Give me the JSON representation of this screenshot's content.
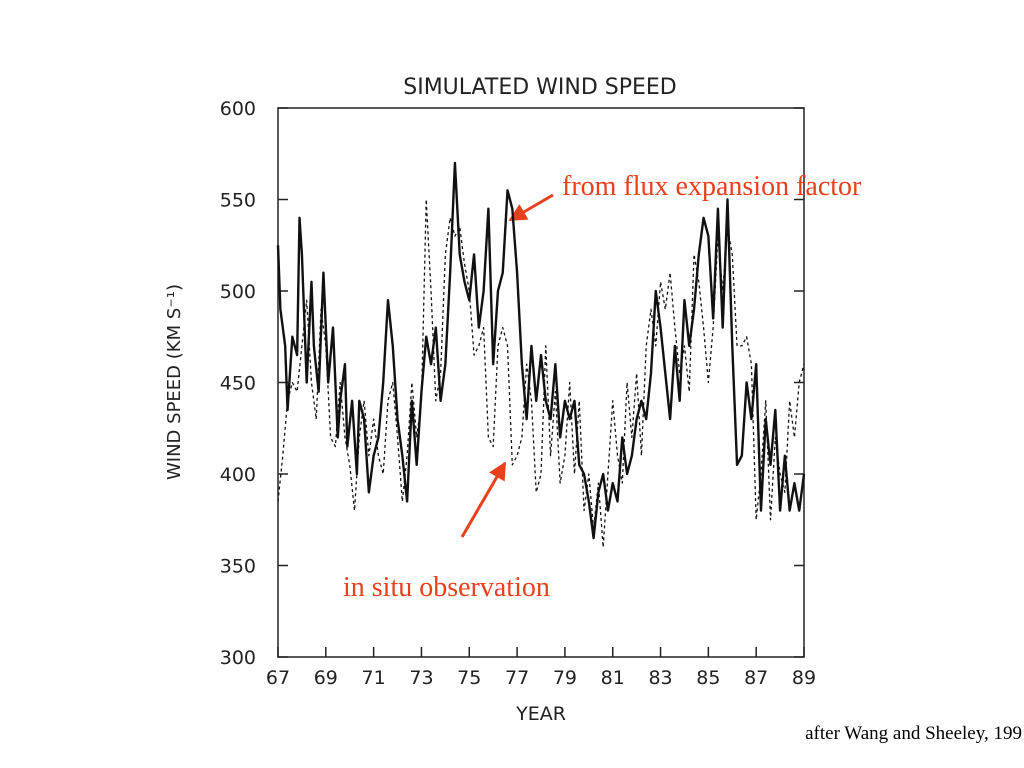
{
  "chart_data": {
    "type": "line",
    "title": "SIMULATED WIND SPEED",
    "xlabel": "YEAR",
    "ylabel": "WIND SPEED (KM S⁻¹)",
    "xlim": [
      67,
      89
    ],
    "xticks": [
      67,
      69,
      71,
      73,
      75,
      77,
      79,
      81,
      83,
      85,
      87,
      89
    ],
    "ylim": [
      300,
      600
    ],
    "yticks": [
      300,
      350,
      400,
      450,
      500,
      550,
      600
    ],
    "series": [
      {
        "color": "#111111",
        "style": "solid",
        "x": [
          67.0,
          67.1,
          67.3,
          67.4,
          67.6,
          67.8,
          67.9,
          68.0,
          68.2,
          68.4,
          68.5,
          68.7,
          68.9,
          69.1,
          69.3,
          69.5,
          69.6,
          69.8,
          69.9,
          70.1,
          70.3,
          70.4,
          70.6,
          70.8,
          71.0,
          71.2,
          71.4,
          71.6,
          71.8,
          72.0,
          72.2,
          72.4,
          72.6,
          72.8,
          73.0,
          73.2,
          73.4,
          73.6,
          73.8,
          74.0,
          74.2,
          74.4,
          74.6,
          74.8,
          75.0,
          75.2,
          75.4,
          75.6,
          75.8,
          76.0,
          76.2,
          76.4,
          76.6,
          76.8,
          77.0,
          77.2,
          77.4,
          77.6,
          77.8,
          78.0,
          78.2,
          78.4,
          78.6,
          78.8,
          79.0,
          79.2,
          79.4,
          79.6,
          79.8,
          80.0,
          80.2,
          80.4,
          80.6,
          80.8,
          81.0,
          81.2,
          81.4,
          81.6,
          81.8,
          82.0,
          82.2,
          82.4,
          82.6,
          82.8,
          83.0,
          83.2,
          83.4,
          83.6,
          83.8,
          84.0,
          84.2,
          84.4,
          84.6,
          84.8,
          85.0,
          85.2,
          85.4,
          85.6,
          85.8,
          86.0,
          86.2,
          86.4,
          86.6,
          86.8,
          87.0,
          87.2,
          87.4,
          87.6,
          87.8,
          88.0,
          88.2,
          88.4,
          88.6,
          88.8,
          89.0
        ],
        "values": [
          525,
          490,
          470,
          435,
          475,
          465,
          540,
          520,
          450,
          505,
          470,
          445,
          510,
          450,
          480,
          420,
          440,
          460,
          415,
          440,
          400,
          440,
          430,
          390,
          410,
          420,
          450,
          495,
          470,
          430,
          410,
          385,
          440,
          405,
          445,
          475,
          460,
          480,
          440,
          460,
          510,
          570,
          520,
          505,
          495,
          520,
          480,
          500,
          545,
          460,
          500,
          510,
          555,
          545,
          510,
          460,
          430,
          470,
          440,
          465,
          440,
          430,
          460,
          420,
          440,
          430,
          440,
          405,
          400,
          385,
          365,
          390,
          400,
          380,
          395,
          385,
          420,
          400,
          410,
          430,
          440,
          430,
          455,
          500,
          480,
          455,
          430,
          470,
          440,
          495,
          470,
          490,
          520,
          540,
          530,
          485,
          545,
          480,
          550,
          470,
          405,
          410,
          450,
          430,
          460,
          380,
          430,
          405,
          435,
          380,
          410,
          380,
          395,
          380,
          400
        ]
      },
      {
        "color": "#111111",
        "style": "dotted",
        "x": [
          67.0,
          67.2,
          67.4,
          67.6,
          67.8,
          68.0,
          68.2,
          68.4,
          68.6,
          68.8,
          69.0,
          69.2,
          69.4,
          69.6,
          69.8,
          70.0,
          70.2,
          70.4,
          70.6,
          70.8,
          71.0,
          71.2,
          71.4,
          71.6,
          71.8,
          72.0,
          72.2,
          72.4,
          72.6,
          72.8,
          73.0,
          73.2,
          73.4,
          73.6,
          73.8,
          74.0,
          74.2,
          74.4,
          74.6,
          74.8,
          75.0,
          75.2,
          75.4,
          75.6,
          75.8,
          76.0,
          76.2,
          76.4,
          76.6,
          76.8,
          77.0,
          77.2,
          77.4,
          77.6,
          77.8,
          78.0,
          78.2,
          78.4,
          78.6,
          78.8,
          79.0,
          79.2,
          79.4,
          79.6,
          79.8,
          80.0,
          80.2,
          80.4,
          80.6,
          80.8,
          81.0,
          81.2,
          81.4,
          81.6,
          81.8,
          82.0,
          82.2,
          82.4,
          82.6,
          82.8,
          83.0,
          83.2,
          83.4,
          83.6,
          83.8,
          84.0,
          84.2,
          84.4,
          84.6,
          84.8,
          85.0,
          85.2,
          85.4,
          85.6,
          85.8,
          86.0,
          86.2,
          86.4,
          86.6,
          86.8,
          87.0,
          87.2,
          87.4,
          87.6,
          87.8,
          88.0,
          88.2,
          88.4,
          88.6,
          88.8,
          89.0
        ],
        "values": [
          385,
          410,
          440,
          450,
          445,
          470,
          495,
          450,
          430,
          490,
          470,
          420,
          415,
          450,
          420,
          405,
          380,
          420,
          440,
          410,
          430,
          410,
          400,
          440,
          450,
          420,
          385,
          410,
          450,
          420,
          440,
          550,
          500,
          440,
          455,
          520,
          540,
          530,
          535,
          515,
          500,
          465,
          470,
          480,
          420,
          415,
          470,
          480,
          470,
          405,
          410,
          420,
          460,
          440,
          390,
          400,
          470,
          410,
          445,
          395,
          410,
          450,
          400,
          440,
          380,
          400,
          370,
          395,
          360,
          400,
          440,
          410,
          395,
          450,
          420,
          455,
          410,
          470,
          490,
          470,
          505,
          490,
          510,
          480,
          455,
          470,
          445,
          520,
          505,
          480,
          450,
          480,
          530,
          500,
          535,
          520,
          470,
          470,
          475,
          460,
          375,
          400,
          440,
          375,
          420,
          400,
          390,
          440,
          420,
          450,
          460
        ]
      }
    ],
    "annotations": [
      {
        "text": "from flux expansion factor",
        "color": "#e8401c"
      },
      {
        "text": "in situ observation",
        "color": "#e8401c"
      }
    ],
    "caption": "after Wang and Sheeley, 199"
  }
}
